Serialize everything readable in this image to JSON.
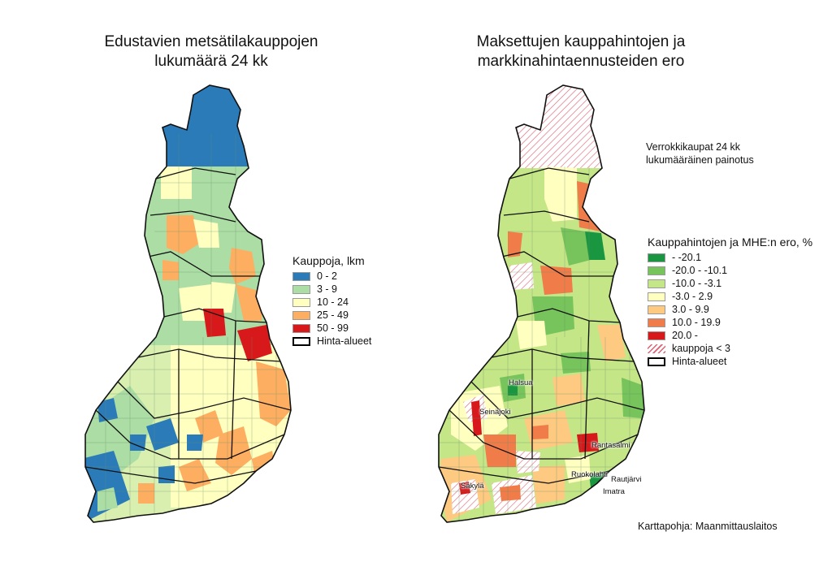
{
  "left_map": {
    "title_line1": "Edustavien metsätilakauppojen",
    "title_line2": "lukumäärä 24 kk",
    "legend": {
      "title": "Kauppoja, lkm",
      "items": [
        {
          "label": "0 - 2",
          "color": "#2b7bb9"
        },
        {
          "label": "3 - 9",
          "color": "#abdda4"
        },
        {
          "label": "10 - 24",
          "color": "#ffffbf"
        },
        {
          "label": "25 - 49",
          "color": "#fdae61"
        },
        {
          "label": "50 - 99",
          "color": "#d7191c"
        }
      ],
      "outline_label": "Hinta-alueet"
    }
  },
  "right_map": {
    "title_line1": "Maksettujen kauppahintojen ja",
    "title_line2": "markkinahintaennusteiden ero",
    "note_line1": "Verrokkikaupat 24 kk",
    "note_line2": "lukumääräinen painotus",
    "legend": {
      "title": "Kauppahintojen ja MHE:n ero, %",
      "items": [
        {
          "label": "- -20.1",
          "color": "#1a9641"
        },
        {
          "label": "-20.0 - -10.1",
          "color": "#77c35c"
        },
        {
          "label": "-10.0 - -3.1",
          "color": "#c4e687"
        },
        {
          "label": "-3.0 - 2.9",
          "color": "#ffffc0"
        },
        {
          "label": "3.0 - 9.9",
          "color": "#fec981"
        },
        {
          "label": "10.0 - 19.9",
          "color": "#f07c4a"
        },
        {
          "label": "20.0 -",
          "color": "#d7191c"
        }
      ],
      "hatch_label": "kauppoja < 3",
      "outline_label": "Hinta-alueet"
    },
    "places": {
      "halsua": "Halsua",
      "seinajoki": "Seinäjoki",
      "rantasalmi": "Rantasalmi",
      "ruokolahti": "Ruokolahti",
      "rautjarvi": "Rautjärvi",
      "imatra": "Imatra",
      "sakyla": "Säkylä"
    },
    "credit": "Karttapohja: Maanmittauslaitos"
  }
}
